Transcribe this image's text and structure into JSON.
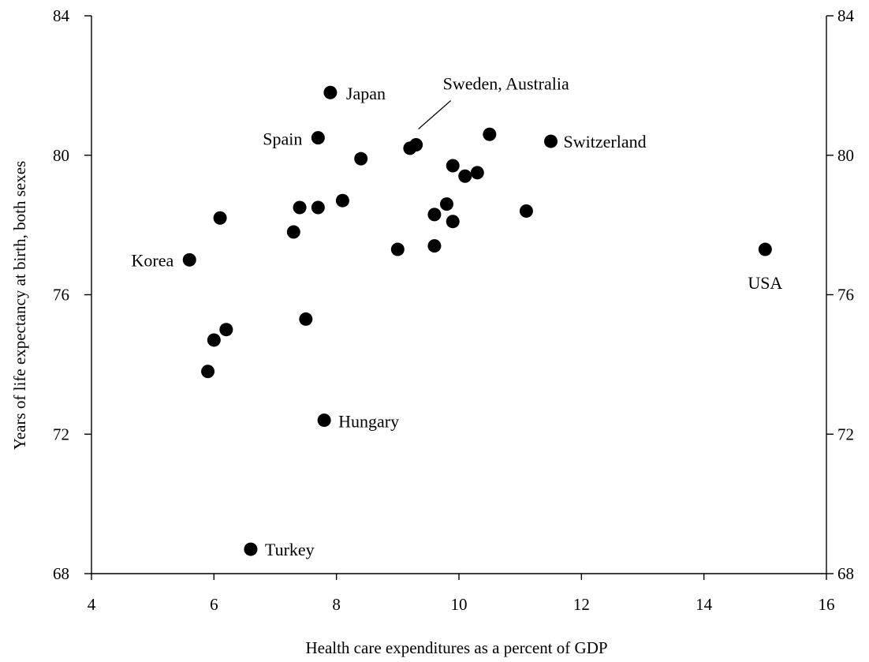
{
  "chart_data": {
    "type": "scatter",
    "title": "",
    "xlabel": "Health care expenditures as a percent of GDP",
    "ylabel": "Years of life expectancy at birth, both sexes",
    "xlim": [
      4,
      16
    ],
    "ylim": [
      68,
      84
    ],
    "xticks": [
      "4",
      "6",
      "8",
      "10",
      "12",
      "14",
      "16"
    ],
    "yticks": [
      "68",
      "72",
      "76",
      "80",
      "84"
    ],
    "yticks_right": [
      "68",
      "72",
      "76",
      "80",
      "84"
    ],
    "grid": false,
    "marker_color": "#000000",
    "points": [
      {
        "x": 5.6,
        "y": 77.0,
        "label": "Korea"
      },
      {
        "x": 5.9,
        "y": 73.8,
        "label": ""
      },
      {
        "x": 6.0,
        "y": 74.7,
        "label": ""
      },
      {
        "x": 6.1,
        "y": 78.2,
        "label": ""
      },
      {
        "x": 6.2,
        "y": 75.0,
        "label": ""
      },
      {
        "x": 6.6,
        "y": 68.7,
        "label": "Turkey"
      },
      {
        "x": 7.3,
        "y": 77.8,
        "label": ""
      },
      {
        "x": 7.4,
        "y": 78.5,
        "label": ""
      },
      {
        "x": 7.5,
        "y": 75.3,
        "label": ""
      },
      {
        "x": 7.7,
        "y": 78.5,
        "label": ""
      },
      {
        "x": 7.7,
        "y": 80.5,
        "label": "Spain"
      },
      {
        "x": 7.8,
        "y": 72.4,
        "label": "Hungary"
      },
      {
        "x": 7.9,
        "y": 81.8,
        "label": "Japan"
      },
      {
        "x": 8.1,
        "y": 78.7,
        "label": ""
      },
      {
        "x": 8.4,
        "y": 79.9,
        "label": ""
      },
      {
        "x": 9.0,
        "y": 77.3,
        "label": ""
      },
      {
        "x": 9.2,
        "y": 80.2,
        "label": ""
      },
      {
        "x": 9.3,
        "y": 80.3,
        "label": ""
      },
      {
        "x": 9.6,
        "y": 77.4,
        "label": ""
      },
      {
        "x": 9.6,
        "y": 78.3,
        "label": ""
      },
      {
        "x": 9.8,
        "y": 78.6,
        "label": ""
      },
      {
        "x": 9.9,
        "y": 79.7,
        "label": ""
      },
      {
        "x": 9.9,
        "y": 78.1,
        "label": ""
      },
      {
        "x": 10.1,
        "y": 79.4,
        "label": ""
      },
      {
        "x": 10.3,
        "y": 79.5,
        "label": ""
      },
      {
        "x": 10.5,
        "y": 80.6,
        "label": ""
      },
      {
        "x": 11.1,
        "y": 78.4,
        "label": ""
      },
      {
        "x": 11.5,
        "y": 80.4,
        "label": "Switzerland"
      },
      {
        "x": 15.0,
        "y": 77.3,
        "label": "USA"
      }
    ],
    "annotations": [
      {
        "text": "Sweden, Australia",
        "points_to": {
          "x": 9.3,
          "y": 80.3
        }
      }
    ]
  }
}
